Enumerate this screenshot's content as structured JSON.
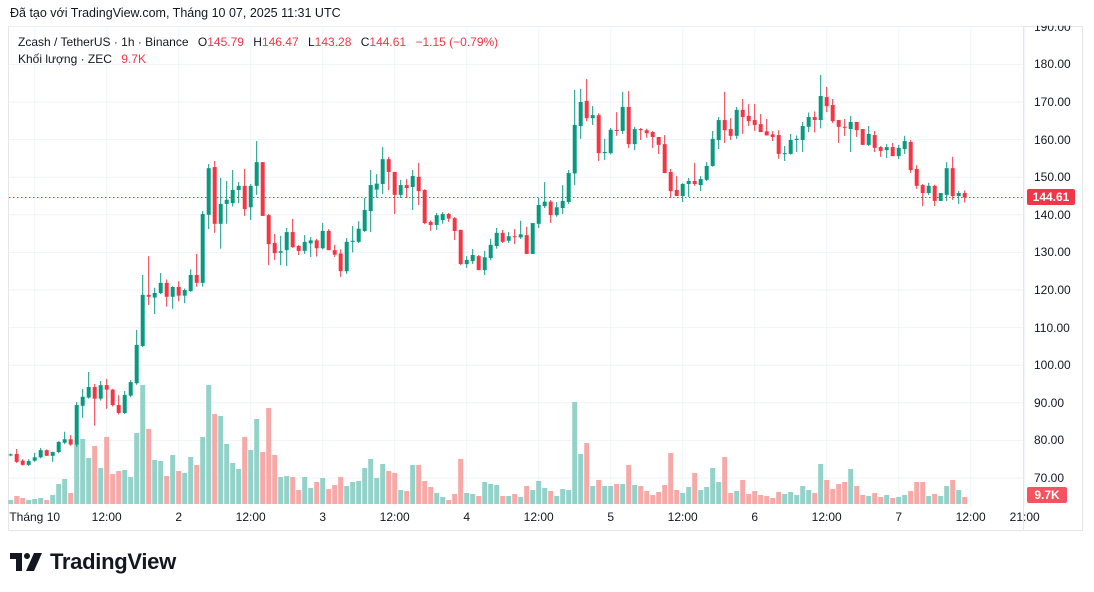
{
  "header": {
    "created_with": "Đã tạo với TradingView.com, Tháng 10 07, 2025 11:31 UTC"
  },
  "legend": {
    "symbol": "Zcash / TetherUS · 1h · Binance",
    "open_label": "O",
    "open": "145.79",
    "high_label": "H",
    "high": "146.47",
    "low_label": "L",
    "low": "143.28",
    "close_label": "C",
    "close": "144.61",
    "change": "−1.15 (−0.79%)",
    "volume_label": "Khối lượng · ZEC",
    "volume": "9.7K"
  },
  "price_axis": {
    "ticks": [
      "190.00",
      "180.00",
      "170.00",
      "160.00",
      "150.00",
      "140.00",
      "130.00",
      "120.00",
      "110.00",
      "100.00",
      "90.00",
      "80.00",
      "70.00"
    ],
    "last_price": "144.61",
    "last_volume": "9.7K"
  },
  "time_axis": {
    "ticks": [
      "Tháng 10",
      "12:00",
      "2",
      "12:00",
      "3",
      "12:00",
      "4",
      "12:00",
      "5",
      "12:00",
      "6",
      "12:00",
      "7",
      "12:00",
      "21:00"
    ]
  },
  "logo": {
    "text": "TradingView"
  },
  "colors": {
    "up": "#089981",
    "down": "#f23645",
    "up_volume": "#92d2c8",
    "down_volume": "#f7a9a7",
    "grid": "#f0f3fa"
  },
  "chart_data": {
    "type": "candlestick",
    "interval": "1h",
    "first_candle_time": "2025-09-30T20:00",
    "ylim": [
      68,
      191
    ],
    "grid": true,
    "volume_unit": "K",
    "ohlc": [
      [
        76.0,
        76.5,
        75.8,
        76.3
      ],
      [
        76.4,
        77.7,
        74.0,
        74.3
      ],
      [
        74.6,
        75.0,
        73.3,
        73.5
      ],
      [
        73.5,
        75.0,
        73.2,
        74.5
      ],
      [
        74.6,
        76.7,
        74.3,
        75.5
      ],
      [
        75.5,
        78.0,
        75.2,
        77.4
      ],
      [
        77.4,
        77.6,
        75.9,
        75.9
      ],
      [
        75.9,
        77.0,
        74.3,
        76.9
      ],
      [
        76.9,
        79.8,
        76.6,
        79.6
      ],
      [
        79.4,
        82.3,
        79.0,
        80.3
      ],
      [
        80.3,
        81.4,
        78.6,
        78.9
      ],
      [
        78.9,
        90.2,
        78.3,
        89.4
      ],
      [
        89.2,
        93.7,
        86.0,
        91.6
      ],
      [
        91.4,
        98.2,
        91.1,
        94.2
      ],
      [
        94.2,
        95.0,
        83.9,
        91.1
      ],
      [
        91.1,
        95.8,
        90.6,
        94.7
      ],
      [
        94.7,
        96.3,
        88.4,
        93.5
      ],
      [
        93.5,
        93.7,
        89.0,
        89.4
      ],
      [
        89.4,
        92.0,
        86.9,
        87.3
      ],
      [
        87.3,
        93.1,
        87.0,
        92.1
      ],
      [
        91.9,
        96.0,
        91.5,
        95.5
      ],
      [
        95.2,
        109.4,
        94.8,
        105.4
      ],
      [
        105.1,
        124.0,
        104.8,
        118.7
      ],
      [
        118.7,
        129.0,
        116.0,
        118.2
      ],
      [
        118.0,
        120.6,
        113.6,
        119.2
      ],
      [
        119.2,
        124.5,
        118.9,
        121.9
      ],
      [
        121.9,
        122.8,
        115.6,
        118.2
      ],
      [
        118.2,
        121.0,
        115.0,
        120.8
      ],
      [
        120.8,
        122.3,
        117.0,
        118.5
      ],
      [
        118.5,
        120.4,
        116.5,
        120.0
      ],
      [
        119.7,
        125.5,
        119.5,
        124.0
      ],
      [
        124.0,
        129.6,
        120.9,
        121.9
      ],
      [
        121.9,
        141.0,
        120.9,
        140.2
      ],
      [
        140.0,
        153.5,
        136.2,
        152.4
      ],
      [
        152.7,
        154.3,
        135.2,
        137.6
      ],
      [
        137.6,
        149.8,
        131.0,
        142.9
      ],
      [
        142.9,
        149.0,
        137.6,
        144.0
      ],
      [
        143.1,
        151.9,
        142.2,
        146.6
      ],
      [
        146.6,
        148.7,
        143.1,
        147.7
      ],
      [
        147.7,
        152.2,
        139.7,
        141.5
      ],
      [
        142.0,
        148.2,
        138.6,
        147.7
      ],
      [
        147.7,
        159.6,
        145.3,
        154.0
      ],
      [
        154.0,
        154.0,
        139.7,
        139.7
      ],
      [
        139.9,
        140.2,
        126.6,
        132.2
      ],
      [
        132.5,
        134.9,
        128.0,
        129.8
      ],
      [
        129.9,
        134.4,
        126.6,
        130.3
      ],
      [
        130.6,
        136.5,
        126.4,
        135.4
      ],
      [
        135.4,
        138.9,
        131.2,
        131.4
      ],
      [
        131.7,
        132.0,
        129.3,
        130.4
      ],
      [
        130.4,
        134.6,
        129.6,
        132.8
      ],
      [
        132.4,
        134.1,
        128.8,
        133.2
      ],
      [
        133.2,
        133.6,
        128.9,
        131.1
      ],
      [
        131.1,
        137.8,
        130.8,
        135.7
      ],
      [
        135.7,
        136.2,
        130.6,
        130.6
      ],
      [
        130.6,
        132.0,
        128.8,
        129.4
      ],
      [
        129.7,
        130.8,
        123.5,
        125.0
      ],
      [
        125.0,
        133.8,
        124.3,
        132.8
      ],
      [
        132.8,
        137.0,
        130.0,
        133.1
      ],
      [
        132.8,
        138.3,
        132.5,
        136.3
      ],
      [
        135.7,
        144.5,
        135.4,
        141.3
      ],
      [
        141.0,
        151.9,
        135.4,
        147.9
      ],
      [
        146.7,
        150.8,
        144.5,
        148.3
      ],
      [
        148.2,
        158.0,
        145.5,
        154.8
      ],
      [
        154.8,
        155.4,
        146.6,
        151.4
      ],
      [
        151.4,
        151.4,
        140.2,
        145.3
      ],
      [
        145.3,
        149.3,
        144.5,
        147.9
      ],
      [
        147.9,
        149.5,
        144.5,
        147.1
      ],
      [
        147.4,
        151.9,
        141.3,
        150.3
      ],
      [
        150.1,
        153.8,
        142.6,
        146.3
      ],
      [
        146.6,
        146.8,
        137.5,
        137.8
      ],
      [
        138.1,
        138.5,
        135.7,
        137.3
      ],
      [
        137.3,
        140.5,
        136.0,
        139.9
      ],
      [
        138.6,
        140.7,
        137.6,
        140.2
      ],
      [
        140.2,
        140.5,
        138.1,
        139.0
      ],
      [
        139.1,
        139.4,
        133.3,
        135.7
      ],
      [
        136.0,
        136.0,
        126.6,
        126.9
      ],
      [
        126.9,
        129.0,
        125.9,
        128.0
      ],
      [
        127.7,
        130.9,
        126.9,
        129.3
      ],
      [
        129.0,
        129.3,
        125.3,
        125.3
      ],
      [
        125.3,
        130.4,
        124.0,
        128.7
      ],
      [
        128.5,
        133.6,
        127.9,
        132.0
      ],
      [
        131.7,
        136.5,
        131.0,
        135.2
      ],
      [
        135.2,
        136.0,
        132.5,
        132.8
      ],
      [
        133.1,
        135.4,
        132.5,
        134.3
      ],
      [
        134.3,
        136.2,
        132.2,
        134.1
      ],
      [
        134.0,
        138.4,
        133.6,
        134.8
      ],
      [
        134.6,
        136.8,
        129.6,
        129.6
      ],
      [
        129.6,
        137.8,
        129.6,
        137.8
      ],
      [
        137.6,
        144.5,
        136.5,
        142.6
      ],
      [
        142.3,
        148.7,
        141.8,
        143.5
      ],
      [
        143.5,
        143.9,
        137.8,
        139.9
      ],
      [
        139.9,
        143.4,
        139.5,
        142.0
      ],
      [
        141.8,
        147.9,
        140.2,
        143.7
      ],
      [
        143.4,
        151.9,
        142.9,
        151.1
      ],
      [
        151.0,
        173.2,
        147.9,
        163.9
      ],
      [
        163.6,
        173.5,
        160.2,
        170.0
      ],
      [
        170.3,
        176.1,
        164.9,
        165.7
      ],
      [
        165.7,
        168.9,
        163.9,
        166.5
      ],
      [
        166.5,
        167.0,
        154.3,
        156.4
      ],
      [
        156.4,
        160.2,
        154.6,
        156.7
      ],
      [
        156.4,
        163.1,
        156.1,
        162.6
      ],
      [
        162.6,
        167.3,
        161.0,
        162.3
      ],
      [
        162.3,
        172.7,
        161.5,
        168.7
      ],
      [
        168.7,
        172.9,
        157.8,
        158.8
      ],
      [
        158.8,
        163.4,
        157.2,
        162.8
      ],
      [
        162.8,
        163.1,
        159.9,
        162.5
      ],
      [
        162.5,
        162.9,
        160.5,
        161.7
      ],
      [
        162.0,
        162.3,
        157.8,
        160.7
      ],
      [
        160.7,
        160.7,
        156.2,
        158.6
      ],
      [
        158.8,
        161.2,
        151.1,
        151.1
      ],
      [
        151.4,
        152.2,
        144.5,
        146.3
      ],
      [
        146.6,
        150.3,
        145.0,
        145.0
      ],
      [
        145.0,
        148.4,
        143.4,
        148.2
      ],
      [
        148.2,
        149.8,
        144.7,
        149.0
      ],
      [
        149.0,
        153.8,
        147.7,
        148.2
      ],
      [
        147.9,
        150.3,
        146.3,
        149.5
      ],
      [
        149.3,
        154.0,
        149.0,
        153.0
      ],
      [
        153.0,
        162.3,
        152.8,
        160.2
      ],
      [
        159.9,
        166.0,
        157.5,
        165.2
      ],
      [
        165.2,
        172.7,
        159.1,
        162.5
      ],
      [
        162.8,
        165.7,
        159.9,
        161.0
      ],
      [
        161.0,
        168.7,
        160.2,
        167.9
      ],
      [
        167.9,
        170.8,
        161.5,
        166.0
      ],
      [
        166.3,
        169.5,
        163.6,
        164.9
      ],
      [
        165.2,
        169.5,
        162.3,
        163.9
      ],
      [
        164.1,
        166.8,
        162.0,
        162.0
      ],
      [
        162.2,
        165.5,
        161.1,
        161.1
      ],
      [
        161.4,
        162.3,
        159.6,
        160.7
      ],
      [
        161.2,
        162.5,
        154.9,
        156.2
      ],
      [
        156.2,
        158.3,
        154.3,
        156.4
      ],
      [
        156.2,
        161.5,
        156.0,
        159.9
      ],
      [
        159.9,
        161.1,
        156.7,
        160.2
      ],
      [
        159.9,
        164.7,
        156.7,
        163.6
      ],
      [
        163.4,
        167.2,
        162.0,
        166.0
      ],
      [
        166.0,
        167.5,
        161.9,
        165.2
      ],
      [
        165.2,
        177.2,
        163.0,
        171.6
      ],
      [
        171.3,
        174.0,
        167.3,
        168.9
      ],
      [
        169.2,
        170.8,
        164.4,
        164.9
      ],
      [
        165.2,
        165.2,
        159.1,
        163.4
      ],
      [
        163.4,
        165.5,
        161.0,
        163.2
      ],
      [
        162.8,
        166.3,
        156.7,
        164.7
      ],
      [
        164.7,
        164.7,
        160.7,
        162.5
      ],
      [
        162.8,
        162.8,
        158.6,
        158.6
      ],
      [
        158.6,
        163.6,
        158.3,
        161.5
      ],
      [
        161.2,
        162.3,
        156.7,
        157.8
      ],
      [
        158.0,
        158.3,
        155.4,
        157.0
      ],
      [
        157.2,
        158.8,
        155.1,
        158.0
      ],
      [
        158.0,
        159.1,
        155.6,
        155.6
      ],
      [
        155.6,
        158.6,
        154.8,
        157.8
      ],
      [
        157.5,
        161.0,
        156.2,
        159.6
      ],
      [
        159.4,
        159.9,
        151.1,
        151.9
      ],
      [
        152.2,
        153.2,
        146.9,
        147.7
      ],
      [
        147.9,
        148.2,
        142.3,
        145.8
      ],
      [
        145.8,
        148.5,
        145.3,
        147.7
      ],
      [
        147.7,
        148.0,
        142.3,
        143.7
      ],
      [
        143.7,
        145.8,
        143.7,
        145.8
      ],
      [
        145.3,
        154.0,
        143.7,
        152.4
      ],
      [
        152.4,
        155.4,
        144.0,
        145.0
      ],
      [
        145.0,
        146.3,
        142.9,
        145.8
      ],
      [
        145.79,
        146.47,
        143.28,
        144.61
      ]
    ],
    "volume": [
      5.5,
      11.1,
      8.3,
      5.5,
      6.9,
      8.3,
      5.5,
      12.5,
      27.7,
      34.7,
      15.2,
      83.2,
      90.1,
      63.8,
      80.4,
      49.9,
      92.9,
      41.6,
      45.7,
      47.1,
      37.4,
      98.4,
      165,
      104,
      61,
      59.6,
      38.8,
      67.9,
      45.7,
      43,
      65.1,
      54.1,
      92.9,
      165,
      124.7,
      122,
      83.2,
      56.8,
      48.5,
      92.9,
      74.8,
      117.8,
      72.1,
      133,
      67.9,
      37.4,
      38.8,
      37.4,
      19.4,
      37.4,
      22.2,
      30.5,
      36,
      20.8,
      26.3,
      37.4,
      24.9,
      30.5,
      31.9,
      49.9,
      62.4,
      36,
      55.4,
      45.7,
      43,
      19.4,
      18,
      54.1,
      54.1,
      31.9,
      23.6,
      15.2,
      9.7,
      5.5,
      13.9,
      62.4,
      15.2,
      13.9,
      11.1,
      30.5,
      27.7,
      26.3,
      11.1,
      11.1,
      13.9,
      9.7,
      24.9,
      19.4,
      31.9,
      22.2,
      18,
      11.1,
      20.8,
      19.4,
      141.4,
      69.3,
      84.5,
      24.9,
      33.3,
      24.9,
      24.9,
      27.7,
      27.7,
      54.1,
      26.3,
      24.9,
      18,
      12.5,
      16.6,
      26.3,
      70.7,
      19.4,
      15.2,
      23.6,
      43,
      19.4,
      23.6,
      49.9,
      30.5,
      65.1,
      15.2,
      18,
      33.3,
      13.9,
      18,
      12.5,
      11.1,
      8.3,
      16.6,
      13.9,
      16.6,
      12.5,
      24.9,
      19.4,
      15.2,
      55.4,
      33.3,
      20.8,
      27.7,
      30.5,
      48.5,
      24.9,
      12.5,
      11.1,
      15.2,
      9.7,
      12.5,
      8.3,
      9.7,
      12.5,
      18,
      30.5,
      30.5,
      11.1,
      13.9,
      11.1,
      24.9,
      33.3,
      19.4,
      9.7
    ]
  }
}
